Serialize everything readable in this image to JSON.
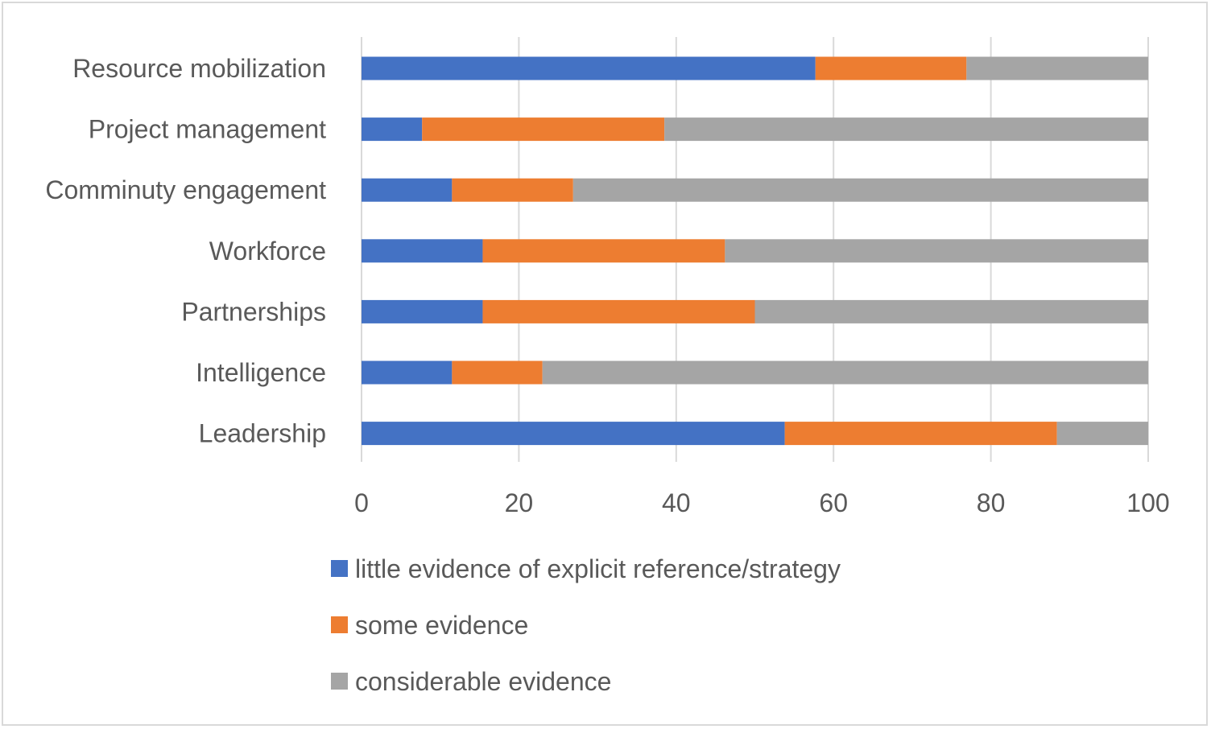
{
  "chart_data": {
    "type": "bar",
    "orientation": "horizontal",
    "stacked": true,
    "categories": [
      "Resource mobilization",
      "Project management",
      "Comminuty engagement",
      "Workforce",
      "Partnerships",
      "Intelligence",
      "Leadership"
    ],
    "series": [
      {
        "name": "little evidence of explicit reference/strategy",
        "color": "#4472c4",
        "values": [
          57.7,
          7.7,
          11.5,
          15.4,
          15.4,
          11.5,
          53.8
        ]
      },
      {
        "name": "some evidence",
        "color": "#ed7d31",
        "values": [
          19.2,
          30.8,
          15.4,
          30.8,
          34.6,
          11.5,
          34.6
        ]
      },
      {
        "name": "considerable evidence",
        "color": "#a5a5a5",
        "values": [
          23.1,
          61.5,
          73.1,
          53.8,
          50.0,
          77.0,
          11.6
        ]
      }
    ],
    "xlim": [
      0,
      100
    ],
    "xticks": [
      "0",
      "20",
      "40",
      "60",
      "80",
      "100"
    ],
    "grid": true,
    "legend_position": "bottom",
    "title": "",
    "xlabel": "",
    "ylabel": ""
  }
}
